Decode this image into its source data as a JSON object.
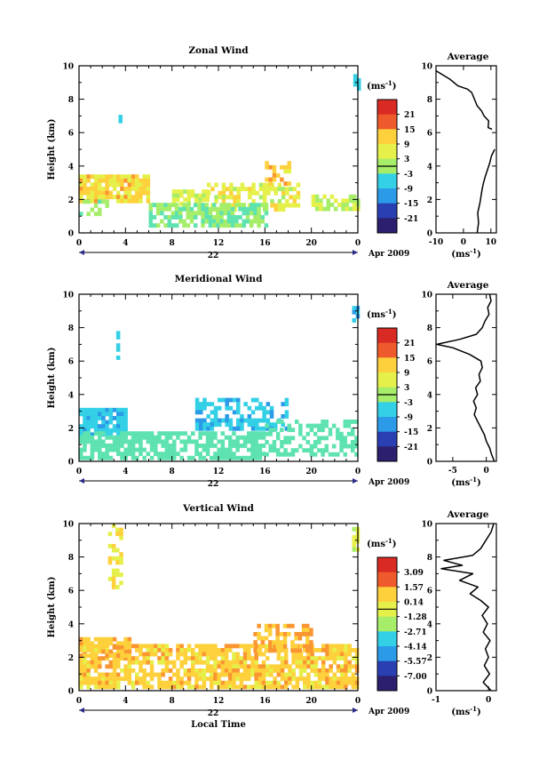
{
  "chart_data": [
    {
      "type": "heatmap",
      "title": "Zonal Wind",
      "ylabel": "Height (km)",
      "xlabel": "",
      "x_ticks": [
        "0",
        "4",
        "8",
        "12",
        "16",
        "20",
        "0"
      ],
      "y_ticks": [
        "0",
        "2",
        "4",
        "6",
        "8",
        "10"
      ],
      "xlim": [
        0,
        24
      ],
      "ylim": [
        0,
        10
      ],
      "day_label": "22",
      "date_label": "Apr 2009",
      "colorbar": {
        "unit": "(ms",
        "unit_sup": "-1",
        "unit_close": ")",
        "ticks": [
          "21",
          "15",
          "9",
          "3",
          "-3",
          "-9",
          "-15",
          "-21"
        ]
      },
      "cells": {
        "seed": 11,
        "regions": [
          {
            "x": [
              0,
              6
            ],
            "y": [
              1.9,
              3.5
            ],
            "v": [
              4,
              14
            ],
            "d": 0.9
          },
          {
            "x": [
              0,
              2.5
            ],
            "y": [
              1.0,
              2.0
            ],
            "v": [
              -2,
              4
            ],
            "d": 0.5
          },
          {
            "x": [
              8,
              11
            ],
            "y": [
              1.8,
              2.6
            ],
            "v": [
              2,
              8
            ],
            "d": 0.7
          },
          {
            "x": [
              11,
              19
            ],
            "y": [
              1.5,
              3.0
            ],
            "v": [
              3,
              9
            ],
            "d": 0.6
          },
          {
            "x": [
              16,
              18
            ],
            "y": [
              3.0,
              4.3
            ],
            "v": [
              6,
              13
            ],
            "d": 0.6
          },
          {
            "x": [
              6,
              16
            ],
            "y": [
              0.4,
              1.8
            ],
            "v": [
              -3,
              4
            ],
            "d": 0.7
          },
          {
            "x": [
              20,
              24
            ],
            "y": [
              1.3,
              2.3
            ],
            "v": [
              2,
              6
            ],
            "d": 0.6
          },
          {
            "x": [
              3.4,
              3.7
            ],
            "y": [
              6.2,
              7.8
            ],
            "v": [
              -5,
              -2
            ],
            "d": 0.6
          },
          {
            "x": [
              23.6,
              24
            ],
            "y": [
              8.5,
              9.5
            ],
            "v": [
              -8,
              -5
            ],
            "d": 0.8
          }
        ]
      },
      "average": {
        "title": "Average",
        "xlabel": "(ms",
        "xlabel_sup": "-1",
        "xlabel_close": ")",
        "xlim": [
          -10,
          12
        ],
        "x_ticks": [
          -10,
          0,
          10
        ],
        "ylim": [
          0,
          10
        ],
        "y_ticks": [
          "0",
          "2",
          "4",
          "6",
          "8",
          "10"
        ],
        "segments": [
          [
            [
              5,
              0
            ],
            [
              5.5,
              0.6
            ],
            [
              5.2,
              1.2
            ],
            [
              6,
              1.8
            ],
            [
              6.4,
              2.2
            ],
            [
              6.8,
              2.6
            ],
            [
              7.3,
              3.0
            ],
            [
              8,
              3.4
            ],
            [
              8.8,
              3.8
            ],
            [
              9.6,
              4.2
            ],
            [
              10.2,
              4.6
            ],
            [
              11.4,
              5.0
            ]
          ],
          [
            [
              10.4,
              6.2
            ],
            [
              9,
              6.3
            ],
            [
              9.2,
              6.7
            ],
            [
              7.5,
              7.0
            ],
            [
              6.6,
              7.3
            ],
            [
              5,
              7.6
            ],
            [
              4,
              8.0
            ],
            [
              3,
              8.4
            ],
            [
              1.5,
              8.6
            ],
            [
              -2,
              8.8
            ],
            [
              -5,
              9.2
            ],
            [
              -8,
              9.5
            ],
            [
              -10,
              9.7
            ]
          ]
        ]
      }
    },
    {
      "type": "heatmap",
      "title": "Meridional Wind",
      "ylabel": "Height (km)",
      "xlabel": "",
      "x_ticks": [
        "0",
        "4",
        "8",
        "12",
        "16",
        "20",
        "0"
      ],
      "y_ticks": [
        "0",
        "2",
        "4",
        "6",
        "8",
        "10"
      ],
      "xlim": [
        0,
        24
      ],
      "ylim": [
        0,
        10
      ],
      "day_label": "22",
      "date_label": "Apr 2009",
      "colorbar": {
        "unit": "(ms",
        "unit_sup": "-1",
        "unit_close": ")",
        "ticks": [
          "21",
          "15",
          "9",
          "3",
          "-3",
          "-9",
          "-15",
          "-21"
        ]
      },
      "cells": {
        "seed": 23,
        "regions": [
          {
            "x": [
              0,
              4
            ],
            "y": [
              1.6,
              3.2
            ],
            "v": [
              -9,
              -5
            ],
            "d": 0.9
          },
          {
            "x": [
              0,
              16
            ],
            "y": [
              0.3,
              1.8
            ],
            "v": [
              -4,
              -1
            ],
            "d": 0.7
          },
          {
            "x": [
              10,
              18
            ],
            "y": [
              2.0,
              3.8
            ],
            "v": [
              -9,
              -5
            ],
            "d": 0.6
          },
          {
            "x": [
              16,
              24
            ],
            "y": [
              0.3,
              2.5
            ],
            "v": [
              -4,
              0
            ],
            "d": 0.5
          },
          {
            "x": [
              3.2,
              3.5
            ],
            "y": [
              6.0,
              7.8
            ],
            "v": [
              -7,
              -4
            ],
            "d": 0.6
          },
          {
            "x": [
              23.5,
              24
            ],
            "y": [
              8.4,
              9.3
            ],
            "v": [
              -9,
              -6
            ],
            "d": 0.8
          }
        ]
      },
      "average": {
        "title": "Average",
        "xlabel": "(ms",
        "xlabel_sup": "-1",
        "xlabel_close": ")",
        "xlim": [
          -7.5,
          1.5
        ],
        "x_ticks": [
          -5,
          0
        ],
        "ylim": [
          0,
          10
        ],
        "y_ticks": [
          "0",
          "2",
          "4",
          "6",
          "8",
          "10"
        ],
        "segments": [
          [
            [
              1.2,
              0
            ],
            [
              0.8,
              0.4
            ],
            [
              0.5,
              0.8
            ],
            [
              0,
              1.2
            ],
            [
              -0.3,
              1.6
            ],
            [
              -0.8,
              2.0
            ],
            [
              -1.3,
              2.4
            ],
            [
              -1.8,
              2.8
            ],
            [
              -1.5,
              3.2
            ],
            [
              -1.9,
              3.6
            ],
            [
              -1.3,
              4.0
            ],
            [
              -1.6,
              4.4
            ],
            [
              -0.9,
              4.8
            ],
            [
              -1.1,
              5.2
            ],
            [
              -0.6,
              5.6
            ],
            [
              -0.8,
              6.0
            ],
            [
              -2.5,
              6.4
            ],
            [
              -5,
              6.8
            ],
            [
              -7.4,
              7.0
            ],
            [
              -4,
              7.3
            ],
            [
              -1.5,
              7.6
            ],
            [
              -0.6,
              8.0
            ],
            [
              -0.2,
              8.4
            ],
            [
              0.4,
              8.8
            ],
            [
              0.2,
              9.2
            ],
            [
              0.7,
              9.6
            ],
            [
              0.5,
              10.0
            ]
          ]
        ]
      }
    },
    {
      "type": "heatmap",
      "title": "Vertical Wind",
      "ylabel": "Height (km)",
      "xlabel": "Local Time",
      "x_ticks": [
        "0",
        "4",
        "8",
        "12",
        "16",
        "20",
        "0"
      ],
      "y_ticks": [
        "0",
        "2",
        "4",
        "6",
        "8",
        "10"
      ],
      "xlim": [
        0,
        24
      ],
      "ylim": [
        0,
        10
      ],
      "day_label": "22",
      "date_label": "Apr 2009",
      "colorbar": {
        "unit": "(ms",
        "unit_sup": "-1",
        "unit_close": ")",
        "ticks": [
          "3.09",
          "1.57",
          "0.14",
          "-1.28",
          "-2.71",
          "-4.14",
          "-5.57",
          "-7.00"
        ]
      },
      "cells": {
        "seed": 37,
        "regions": [
          {
            "x": [
              0,
              24
            ],
            "y": [
              0.2,
              2.8
            ],
            "v": [
              -0.3,
              1.2
            ],
            "d": 0.75
          },
          {
            "x": [
              0,
              4.5
            ],
            "y": [
              2.0,
              3.2
            ],
            "v": [
              0,
              1.4
            ],
            "d": 0.7
          },
          {
            "x": [
              15,
              20
            ],
            "y": [
              2.5,
              4.0
            ],
            "v": [
              0.2,
              1.6
            ],
            "d": 0.6
          },
          {
            "x": [
              2.5,
              3.8
            ],
            "y": [
              6.2,
              10
            ],
            "v": [
              -0.8,
              0.4
            ],
            "d": 0.5
          },
          {
            "x": [
              23.5,
              24
            ],
            "y": [
              8.5,
              9.8
            ],
            "v": [
              -1.2,
              0
            ],
            "d": 0.8
          }
        ]
      },
      "average": {
        "title": "Average",
        "xlabel": "(ms",
        "xlabel_sup": "-1",
        "xlabel_close": ")",
        "xlim": [
          -1,
          0.15
        ],
        "x_ticks": [
          -1,
          0
        ],
        "ylim": [
          0,
          10
        ],
        "y_ticks": [
          "0",
          "2",
          "4",
          "6",
          "8",
          "10"
        ],
        "segments": [
          [
            [
              0.05,
              0
            ],
            [
              -0.1,
              0.5
            ],
            [
              0.02,
              1
            ],
            [
              -0.08,
              1.5
            ],
            [
              0.0,
              2
            ],
            [
              -0.06,
              2.5
            ],
            [
              0.03,
              3
            ],
            [
              -0.1,
              3.5
            ],
            [
              -0.02,
              4
            ],
            [
              -0.12,
              4.5
            ],
            [
              0.0,
              5
            ],
            [
              -0.15,
              5.4
            ],
            [
              -0.35,
              5.8
            ],
            [
              -0.2,
              6.2
            ],
            [
              -0.55,
              6.6
            ],
            [
              -0.3,
              7.0
            ],
            [
              -0.9,
              7.3
            ],
            [
              -0.5,
              7.5
            ],
            [
              -0.85,
              7.8
            ],
            [
              -0.3,
              8.1
            ],
            [
              -0.15,
              8.5
            ],
            [
              -0.05,
              9
            ],
            [
              0.05,
              9.5
            ],
            [
              0.1,
              10
            ]
          ]
        ]
      }
    }
  ]
}
